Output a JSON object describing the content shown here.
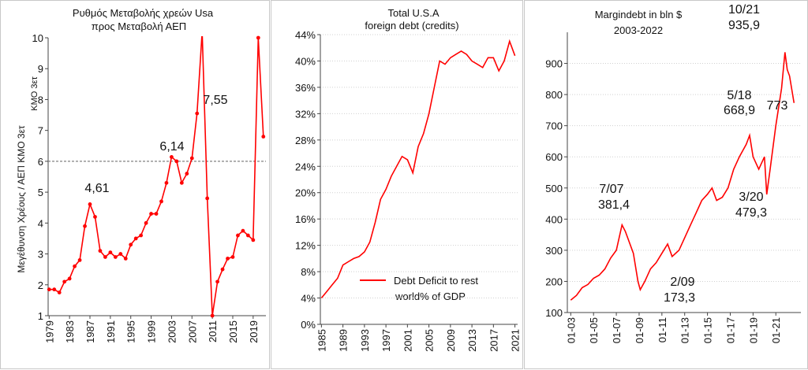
{
  "chart_data": [
    {
      "type": "line",
      "title": "Ρυθμός Μεταβολής χρεών Usa",
      "subtitle": "προς Μεταβολή ΑΕΠ",
      "ylabel": "Μεγέθυνση Χρέους / ΑΕΠ  ΚΜΟ 3ετ",
      "side_label": "ΚΜΟ 3ετ",
      "ylim": [
        1,
        10
      ],
      "y_ticks": [
        "1",
        "2",
        "3",
        "4",
        "5",
        "6",
        "7",
        "8",
        "9",
        "10"
      ],
      "x_ticks": [
        "1979",
        "1983",
        "1987",
        "1991",
        "1995",
        "1999",
        "2003",
        "2007",
        "2011",
        "2015",
        "2019"
      ],
      "reference_line": 6,
      "color": "#ff0000",
      "x": [
        1979,
        1980,
        1981,
        1982,
        1983,
        1984,
        1985,
        1986,
        1987,
        1988,
        1989,
        1990,
        1991,
        1992,
        1993,
        1994,
        1995,
        1996,
        1997,
        1998,
        1999,
        2000,
        2001,
        2002,
        2003,
        2004,
        2005,
        2006,
        2007,
        2008,
        2009,
        2010,
        2011,
        2012,
        2013,
        2014,
        2015,
        2016,
        2017,
        2018,
        2019,
        2020,
        2021
      ],
      "values": [
        1.85,
        1.85,
        1.75,
        2.1,
        2.2,
        2.6,
        2.8,
        3.9,
        4.61,
        4.2,
        3.1,
        2.9,
        3.05,
        2.9,
        3.0,
        2.85,
        3.3,
        3.5,
        3.6,
        4.0,
        4.3,
        4.3,
        4.7,
        5.3,
        6.14,
        6.0,
        5.3,
        5.6,
        6.1,
        7.55,
        10.2,
        4.8,
        1.0,
        2.1,
        2.5,
        2.85,
        2.9,
        3.6,
        3.75,
        3.6,
        3.45,
        10.0,
        6.8
      ],
      "annotations": [
        "4,61",
        "6,14",
        "7,55"
      ]
    },
    {
      "type": "line",
      "title": "Total U.S.A",
      "subtitle": "foreign debt  (credits)",
      "ylim": [
        0,
        44
      ],
      "y_ticks": [
        "0%",
        "4%",
        "8%",
        "12%",
        "16%",
        "20%",
        "24%",
        "28%",
        "32%",
        "36%",
        "40%",
        "44%"
      ],
      "x_ticks": [
        "1985",
        "1989",
        "1993",
        "1997",
        "2001",
        "2005",
        "2009",
        "2013",
        "2017",
        "2021"
      ],
      "legend": [
        "Debt Deficit to rest",
        "world% of GDP"
      ],
      "color": "#ff0000",
      "x": [
        1985,
        1986,
        1987,
        1988,
        1989,
        1990,
        1991,
        1992,
        1993,
        1994,
        1995,
        1996,
        1997,
        1998,
        1999,
        2000,
        2001,
        2002,
        2003,
        2004,
        2005,
        2006,
        2007,
        2008,
        2009,
        2010,
        2011,
        2012,
        2013,
        2014,
        2015,
        2016,
        2017,
        2018,
        2019,
        2020,
        2021
      ],
      "values": [
        4.0,
        5.0,
        6.0,
        7.0,
        9.0,
        9.5,
        10.0,
        10.3,
        11.0,
        12.5,
        15.5,
        19.0,
        20.5,
        22.5,
        24.0,
        25.5,
        25.0,
        23.0,
        27.0,
        29.0,
        32.0,
        36.0,
        40.0,
        39.5,
        40.5,
        41.0,
        41.5,
        41.0,
        40.0,
        39.5,
        39.0,
        40.5,
        40.5,
        38.5,
        40.0,
        43.0,
        40.8
      ]
    },
    {
      "type": "line",
      "title": "Margindebt in bln $",
      "subtitle": "2003-2022",
      "ylim": [
        100,
        1000
      ],
      "y_ticks": [
        "100",
        "200",
        "300",
        "400",
        "500",
        "600",
        "700",
        "800",
        "900"
      ],
      "x_ticks": [
        "01-03",
        "01-05",
        "01-07",
        "01-09",
        "01-11",
        "01-13",
        "01-15",
        "01-17",
        "01-19",
        "01-21"
      ],
      "color": "#ff0000",
      "x": [
        2003.0,
        2003.5,
        2004.0,
        2004.5,
        2005.0,
        2005.5,
        2006.0,
        2006.5,
        2007.0,
        2007.5,
        2007.8,
        2008.0,
        2008.5,
        2008.9,
        2009.1,
        2009.5,
        2010.0,
        2010.5,
        2011.0,
        2011.5,
        2011.9,
        2012.5,
        2013.0,
        2013.5,
        2014.0,
        2014.5,
        2015.0,
        2015.4,
        2015.8,
        2016.3,
        2016.8,
        2017.3,
        2017.8,
        2018.4,
        2018.7,
        2019.0,
        2019.5,
        2020.0,
        2020.2,
        2020.5,
        2021.0,
        2021.5,
        2021.8,
        2022.0,
        2022.2,
        2022.6
      ],
      "values": [
        140,
        155,
        180,
        190,
        210,
        220,
        240,
        275,
        300,
        381.4,
        360,
        340,
        290,
        200,
        173.3,
        200,
        240,
        260,
        290,
        320,
        280,
        300,
        340,
        380,
        420,
        460,
        480,
        500,
        460,
        470,
        500,
        560,
        600,
        640,
        668.9,
        600,
        560,
        600,
        479.3,
        560,
        700,
        820,
        935.9,
        880,
        860,
        773
      ],
      "annotations": [
        "7/07",
        "381,4",
        "2/09",
        "173,3",
        "5/18",
        "668,9",
        "3/20",
        "479,3",
        "10/21",
        "935,9",
        "773"
      ]
    }
  ]
}
